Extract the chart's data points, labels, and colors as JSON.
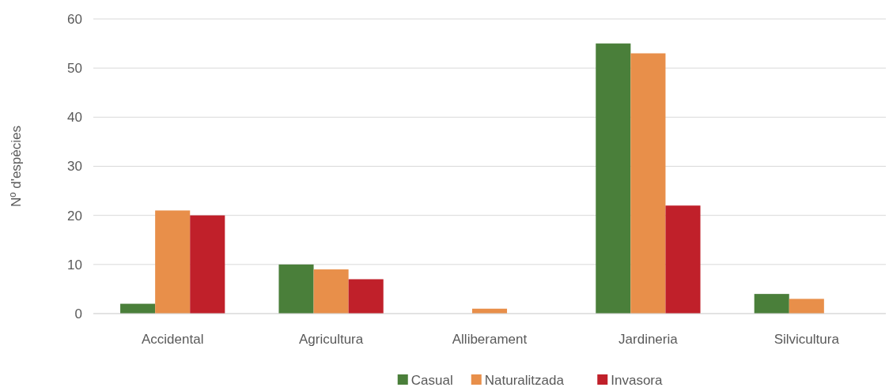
{
  "chart_data": {
    "type": "bar",
    "ylabel": "Nº d'espècies",
    "categories": [
      "Accidental",
      "Agricultura",
      "Alliberament",
      "Jardineria",
      "Silvicultura"
    ],
    "series": [
      {
        "name": "Casual",
        "color": "#4a7f3a",
        "values": [
          2,
          10,
          0,
          55,
          4
        ]
      },
      {
        "name": "Naturalitzada",
        "color": "#e88f4a",
        "values": [
          21,
          9,
          1,
          53,
          3
        ]
      },
      {
        "name": "Invasora",
        "color": "#c0202a",
        "values": [
          20,
          7,
          0,
          22,
          0
        ]
      }
    ],
    "ylim": [
      0,
      60
    ],
    "yticks": [
      0,
      10,
      20,
      30,
      40,
      50,
      60
    ],
    "grid": "y",
    "legend": "bottom"
  }
}
